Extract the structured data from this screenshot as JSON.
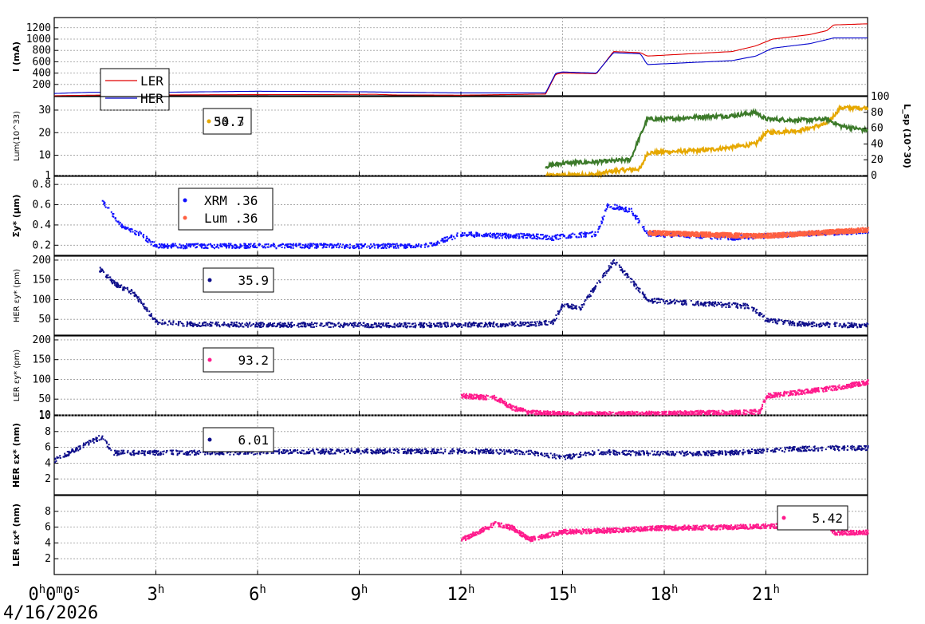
{
  "chart_data": [
    {
      "type": "line",
      "ylabel": "I (mA)",
      "ylim": [
        0,
        1380
      ],
      "yticks": [
        200,
        400,
        600,
        800,
        1000,
        1200
      ],
      "series": [
        {
          "name": "LER",
          "color": "#e00000",
          "x": [
            0,
            1.0,
            3.0,
            6.0,
            9.5,
            10.0,
            12.0,
            14.5,
            14.8,
            15.0,
            16.0,
            16.5,
            17.3,
            17.5,
            20.0,
            20.7,
            21.2,
            22.3,
            22.8,
            23.0,
            24.0
          ],
          "y": [
            0,
            10,
            15,
            20,
            25,
            15,
            10,
            30,
            380,
            400,
            390,
            780,
            760,
            700,
            780,
            880,
            1000,
            1080,
            1150,
            1250,
            1270
          ]
        },
        {
          "name": "HER",
          "color": "#0000cc",
          "x": [
            0,
            1.0,
            3.0,
            6.0,
            9.0,
            12.0,
            14.5,
            14.8,
            15.0,
            16.0,
            16.5,
            17.3,
            17.5,
            20.0,
            20.7,
            21.2,
            22.3,
            23.0,
            24.0
          ],
          "y": [
            40,
            60,
            60,
            80,
            70,
            50,
            50,
            400,
            420,
            400,
            760,
            740,
            550,
            620,
            700,
            840,
            920,
            1020,
            1020
          ]
        }
      ],
      "legend": [
        "LER",
        "HER"
      ]
    },
    {
      "type": "line",
      "ylabel": "Lum(10^33)",
      "y2label": "L_sp (10^30)",
      "yticks": [
        1,
        10,
        20,
        30
      ],
      "y2ticks": [
        0,
        20,
        40,
        60,
        80,
        100
      ],
      "ylim": [
        1,
        36
      ],
      "series": [
        {
          "name": "Lum",
          "color": "#e6a800",
          "x": [
            14.5,
            16.0,
            16.5,
            17.3,
            17.5,
            18.0,
            19.0,
            20.0,
            20.7,
            21.0,
            22.0,
            22.8,
            23.2,
            24.0
          ],
          "y": [
            1,
            1.5,
            3,
            4,
            11,
            11.5,
            12,
            13.5,
            15,
            20,
            21,
            24,
            31,
            31
          ]
        },
        {
          "name": "Lsp",
          "color": "#3c7a2a",
          "x": [
            14.5,
            15.0,
            16.0,
            17.0,
            17.5,
            18.0,
            19.0,
            20.0,
            20.7,
            21.0,
            22.0,
            22.8,
            23.2,
            24.0
          ],
          "y": [
            5,
            6.5,
            7,
            8,
            26,
            26,
            27,
            27.5,
            29,
            26,
            25.5,
            26,
            23,
            21
          ]
        }
      ],
      "legend_value": "50.7",
      "legend_value_overlap": "34.3"
    },
    {
      "type": "scatter",
      "ylabel": "Σy* (μm)",
      "ylim": [
        0.1,
        0.88
      ],
      "yticks": [
        0.2,
        0.4,
        0.6,
        0.8
      ],
      "series": [
        {
          "name": "XRM",
          "color": "#1010ff",
          "value": ".36",
          "x": [
            1.4,
            2.0,
            2.5,
            3.0,
            5.0,
            8.0,
            10.0,
            11.0,
            12.0,
            13.0,
            14.0,
            14.7,
            15.0,
            16.0,
            16.3,
            17.0,
            17.5,
            19.0,
            20.0,
            21.0,
            22.0,
            23.0,
            24.0
          ],
          "y": [
            0.65,
            0.38,
            0.32,
            0.2,
            0.2,
            0.2,
            0.2,
            0.2,
            0.32,
            0.3,
            0.3,
            0.28,
            0.3,
            0.32,
            0.6,
            0.55,
            0.32,
            0.3,
            0.28,
            0.3,
            0.32,
            0.33,
            0.35
          ]
        },
        {
          "name": "Lum",
          "color": "#ff6040",
          "value": ".36",
          "x": [
            17.5,
            18.5,
            19.5,
            20.5,
            21.0,
            22.0,
            23.0,
            24.0
          ],
          "y": [
            0.33,
            0.32,
            0.31,
            0.3,
            0.3,
            0.32,
            0.34,
            0.36
          ]
        }
      ]
    },
    {
      "type": "scatter",
      "ylabel": "HER εy* (pm)",
      "ylim": [
        10,
        210
      ],
      "yticks": [
        50,
        100,
        150,
        200
      ],
      "series": [
        {
          "name": "HER",
          "color": "#0d0d8a",
          "value": "35.9",
          "x": [
            1.3,
            1.8,
            2.3,
            3.0,
            4.0,
            6.0,
            8.0,
            10.0,
            12.0,
            14.0,
            14.7,
            15.0,
            15.5,
            16.5,
            17.5,
            18.5,
            19.5,
            20.5,
            21.0,
            22.0,
            23.0,
            24.0
          ],
          "y": [
            180,
            140,
            120,
            45,
            40,
            38,
            38,
            37,
            38,
            40,
            45,
            90,
            80,
            200,
            100,
            95,
            90,
            85,
            50,
            40,
            38,
            36
          ]
        }
      ]
    },
    {
      "type": "scatter",
      "ylabel": "LER εy* (pm)",
      "ylim": [
        10,
        210
      ],
      "yticks": [
        10,
        50,
        100,
        150,
        200
      ],
      "series": [
        {
          "name": "LER",
          "color": "#ff1a8c",
          "value": "93.2",
          "x": [
            12.0,
            13.0,
            13.5,
            14.0,
            15.0,
            16.0,
            17.0,
            18.0,
            19.0,
            20.0,
            20.8,
            21.0,
            22.0,
            23.0,
            24.0
          ],
          "y": [
            60,
            55,
            30,
            18,
            14,
            14,
            15,
            15,
            17,
            18,
            20,
            60,
            70,
            80,
            95
          ]
        }
      ]
    },
    {
      "type": "scatter",
      "ylabel": "HER εx* (nm)",
      "ylim": [
        0,
        10
      ],
      "yticks": [
        2,
        4,
        6,
        8,
        10
      ],
      "series": [
        {
          "name": "HER",
          "color": "#0d0d8a",
          "value": "6.01",
          "x": [
            0,
            1.4,
            1.7,
            3.0,
            6.0,
            9.0,
            12.0,
            14.0,
            15.0,
            16.0,
            18.0,
            20.0,
            21.0,
            22.0,
            23.0,
            24.0
          ],
          "y": [
            4.5,
            7.5,
            5.4,
            5.4,
            5.5,
            5.6,
            5.6,
            5.5,
            4.8,
            5.5,
            5.3,
            5.4,
            5.7,
            5.9,
            6.0,
            6.0
          ]
        }
      ]
    },
    {
      "type": "scatter",
      "ylabel": "LER εx* (nm)",
      "ylim": [
        0,
        10
      ],
      "yticks": [
        2,
        4,
        6,
        8
      ],
      "series": [
        {
          "name": "LER",
          "color": "#ff1a8c",
          "value": "5.42",
          "x": [
            12.0,
            12.5,
            13.0,
            13.5,
            14.0,
            15.0,
            16.0,
            18.0,
            20.0,
            21.0,
            22.0,
            22.8,
            23.0,
            24.0
          ],
          "y": [
            4.5,
            5.5,
            6.5,
            6.0,
            4.5,
            5.5,
            5.6,
            6.0,
            6.1,
            6.2,
            6.3,
            6.4,
            5.4,
            5.4
          ]
        }
      ]
    }
  ],
  "xaxis": {
    "range_hours": [
      0,
      24
    ],
    "ticks": [
      {
        "h": 0,
        "label": "0h0m0s"
      },
      {
        "h": 3,
        "label": "3h"
      },
      {
        "h": 6,
        "label": "6h"
      },
      {
        "h": 9,
        "label": "9h"
      },
      {
        "h": 12,
        "label": "12h"
      },
      {
        "h": 15,
        "label": "15h"
      },
      {
        "h": 18,
        "label": "18h"
      },
      {
        "h": 21,
        "label": "21h"
      }
    ]
  },
  "date": "4/16/2026"
}
